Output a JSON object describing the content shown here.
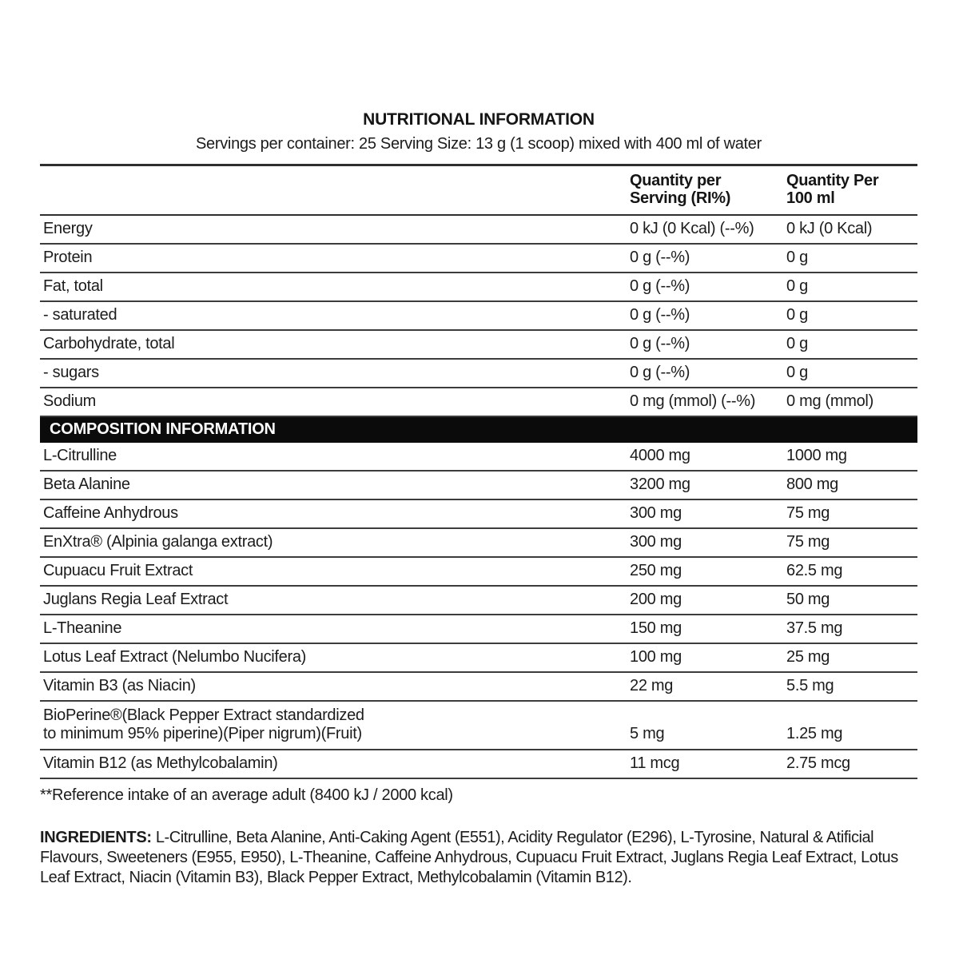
{
  "title": "NUTRITIONAL INFORMATION",
  "subtitle": "Servings per container: 25 Serving Size: 13 g (1 scoop) mixed with 400 ml of water",
  "table": {
    "header": {
      "col2_line1": "Quantity per",
      "col2_line2": "Serving (RI%)",
      "col3_line1": "Quantity Per",
      "col3_line2": "100 ml"
    },
    "nutrition_rows": [
      {
        "label": "Energy",
        "per_serving": "0 kJ (0 Kcal) (--%)",
        "per_100ml": "0 kJ (0 Kcal)"
      },
      {
        "label": "Protein",
        "per_serving": "0 g (--%)",
        "per_100ml": "0 g"
      },
      {
        "label": "Fat, total",
        "per_serving": "0 g (--%)",
        "per_100ml": "0 g"
      },
      {
        "label": "- saturated",
        "per_serving": "0 g (--%)",
        "per_100ml": "0 g"
      },
      {
        "label": "Carbohydrate, total",
        "per_serving": "0 g (--%)",
        "per_100ml": "0 g"
      },
      {
        "label": "- sugars",
        "per_serving": "0 g (--%)",
        "per_100ml": "0 g"
      },
      {
        "label": "Sodium",
        "per_serving": "0 mg (mmol) (--%)",
        "per_100ml": "0 mg (mmol)"
      }
    ],
    "composition_header": "COMPOSITION INFORMATION",
    "composition_rows": [
      {
        "label": "L-Citrulline",
        "per_serving": "4000 mg",
        "per_100ml": "1000 mg"
      },
      {
        "label": "Beta Alanine",
        "per_serving": "3200 mg",
        "per_100ml": "800 mg"
      },
      {
        "label": "Caffeine Anhydrous",
        "per_serving": "300 mg",
        "per_100ml": "75 mg"
      },
      {
        "label": "EnXtra® (Alpinia galanga extract)",
        "per_serving": "300 mg",
        "per_100ml": "75 mg"
      },
      {
        "label": "Cupuacu Fruit Extract",
        "per_serving": "250 mg",
        "per_100ml": "62.5 mg"
      },
      {
        "label": "Juglans Regia Leaf Extract",
        "per_serving": "200 mg",
        "per_100ml": "50 mg"
      },
      {
        "label": "L-Theanine",
        "per_serving": "150 mg",
        "per_100ml": "37.5 mg"
      },
      {
        "label": "Lotus Leaf Extract (Nelumbo Nucifera)",
        "per_serving": "100 mg",
        "per_100ml": "25 mg"
      },
      {
        "label": "Vitamin B3 (as Niacin)",
        "per_serving": "22 mg",
        "per_100ml": "5.5 mg"
      },
      {
        "label": "BioPerine®(Black Pepper Extract standardized",
        "label2": "to minimum 95% piperine)(Piper nigrum)(Fruit)",
        "per_serving": "5 mg",
        "per_100ml": "1.25 mg"
      },
      {
        "label": "Vitamin B12 (as Methylcobalamin)",
        "per_serving": "11 mcg",
        "per_100ml": "2.75 mcg"
      }
    ]
  },
  "footnote": "**Reference intake of an average adult (8400 kJ / 2000 kcal)",
  "ingredients": {
    "label": "INGREDIENTS:",
    "text": " L-Citrulline, Beta Alanine, Anti-Caking Agent (E551), Acidity Regulator (E296), L-Tyrosine, Natural & Atificial Flavours, Sweeteners (E955, E950), L-Theanine, Caffeine Anhydrous, Cupuacu Fruit Extract, Juglans Regia Leaf Extract, Lotus Leaf Extract, Niacin (Vitamin B3), Black Pepper Extract, Methylcobalamin (Vitamin B12)."
  }
}
